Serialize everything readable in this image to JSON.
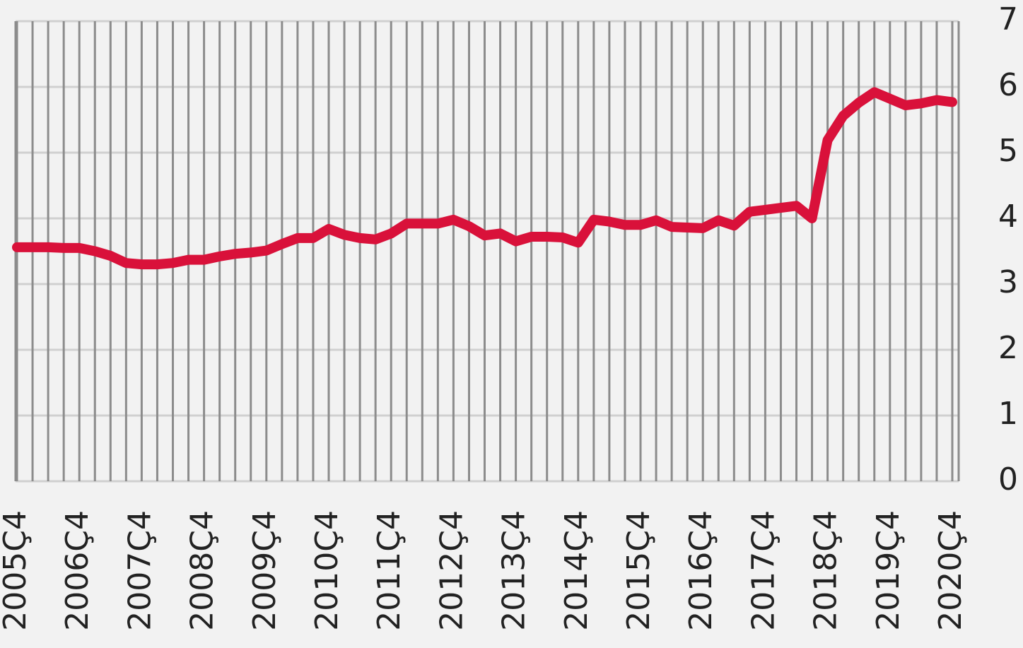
{
  "chart_data": {
    "type": "line",
    "categories": [
      "2005Ç4",
      null,
      null,
      null,
      "2006Ç4",
      null,
      null,
      null,
      "2007Ç4",
      null,
      null,
      null,
      "2008Ç4",
      null,
      null,
      null,
      "2009Ç4",
      null,
      null,
      null,
      "2010Ç4",
      null,
      null,
      null,
      "2011Ç4",
      null,
      null,
      null,
      "2012Ç4",
      null,
      null,
      null,
      "2013Ç4",
      null,
      null,
      null,
      "2014Ç4",
      null,
      null,
      null,
      "2015Ç4",
      null,
      null,
      null,
      "2016Ç4",
      null,
      null,
      null,
      "2017Ç4",
      null,
      null,
      null,
      "2018Ç4",
      null,
      null,
      null,
      "2019Ç4",
      null,
      null,
      null,
      "2020Ç4"
    ],
    "values": [
      3.56,
      3.56,
      3.56,
      3.55,
      3.55,
      3.5,
      3.43,
      3.32,
      3.3,
      3.3,
      3.32,
      3.37,
      3.37,
      3.42,
      3.46,
      3.48,
      3.51,
      3.61,
      3.7,
      3.7,
      3.84,
      3.75,
      3.7,
      3.68,
      3.77,
      3.92,
      3.92,
      3.92,
      3.98,
      3.88,
      3.74,
      3.77,
      3.65,
      3.72,
      3.72,
      3.71,
      3.63,
      3.98,
      3.95,
      3.9,
      3.9,
      3.97,
      3.87,
      3.86,
      3.85,
      3.97,
      3.89,
      4.1,
      4.13,
      4.16,
      4.19,
      4.0,
      5.19,
      5.56,
      5.76,
      5.92,
      5.82,
      5.72,
      5.75,
      5.8,
      5.77
    ],
    "color": "#d9113a",
    "ylim": [
      0,
      7
    ],
    "yticks": [
      0,
      1,
      2,
      3,
      4,
      5,
      6,
      7
    ],
    "grid": true
  }
}
